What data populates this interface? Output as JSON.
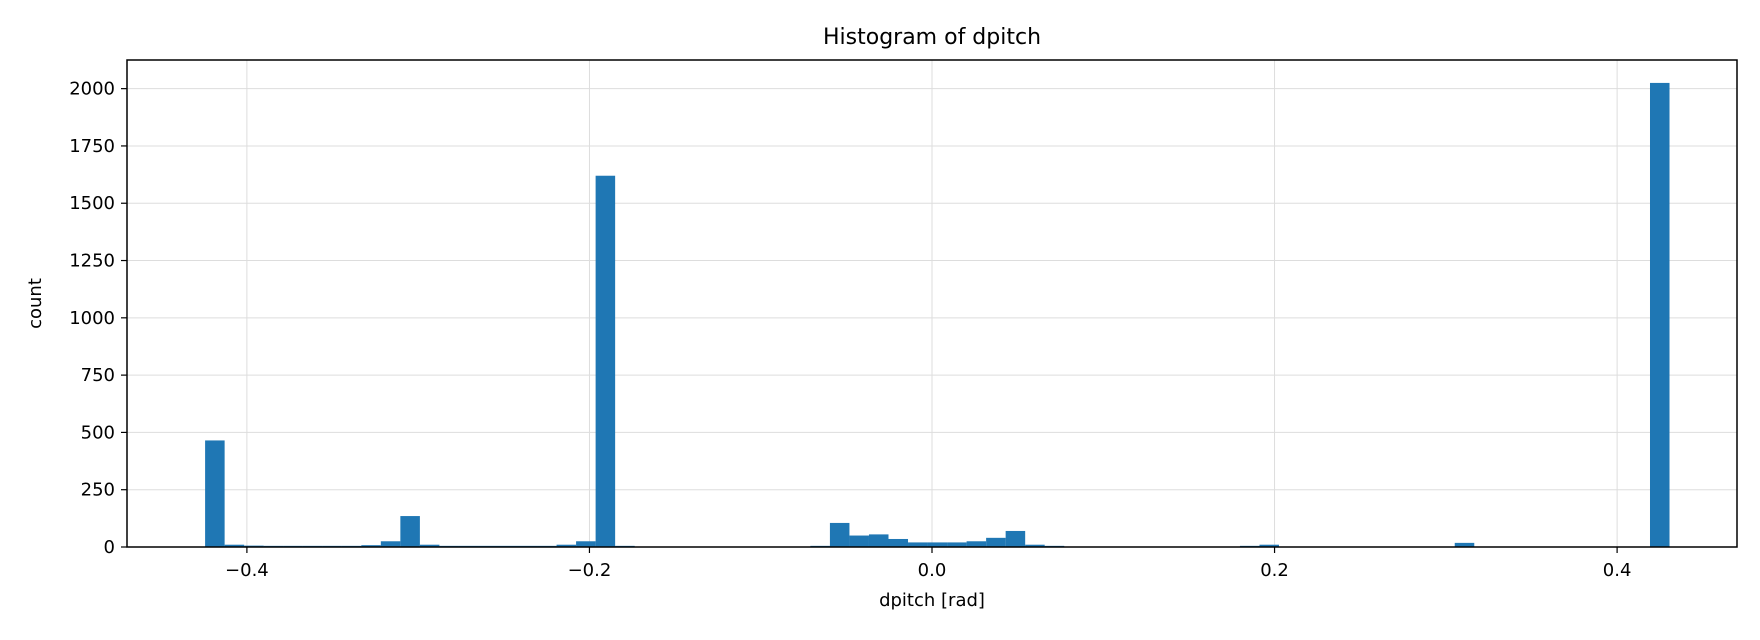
{
  "chart_data": {
    "type": "bar",
    "title": "Histogram of dpitch",
    "xlabel": "dpitch [rad]",
    "ylabel": "count",
    "xlim": [
      -0.47,
      0.47
    ],
    "ylim": [
      0,
      2125
    ],
    "grid": true,
    "bar_color": "#1f77b4",
    "xticks": [
      -0.4,
      -0.2,
      0.0,
      0.2,
      0.4
    ],
    "xtick_labels": [
      "−0.4",
      "−0.2",
      "0.0",
      "0.2",
      "0.4"
    ],
    "yticks": [
      0,
      250,
      500,
      750,
      1000,
      1250,
      1500,
      1750,
      2000
    ],
    "ytick_labels": [
      "0",
      "250",
      "500",
      "750",
      "1000",
      "1250",
      "1500",
      "1750",
      "2000"
    ],
    "bin_width": 0.0114,
    "bins": [
      {
        "x": -0.4244,
        "count": 465
      },
      {
        "x": -0.413,
        "count": 10
      },
      {
        "x": -0.4016,
        "count": 6
      },
      {
        "x": -0.3902,
        "count": 5
      },
      {
        "x": -0.3788,
        "count": 5
      },
      {
        "x": -0.3674,
        "count": 5
      },
      {
        "x": -0.356,
        "count": 5
      },
      {
        "x": -0.3446,
        "count": 5
      },
      {
        "x": -0.3332,
        "count": 8
      },
      {
        "x": -0.3218,
        "count": 25
      },
      {
        "x": -0.3104,
        "count": 135
      },
      {
        "x": -0.299,
        "count": 10
      },
      {
        "x": -0.2876,
        "count": 5
      },
      {
        "x": -0.2762,
        "count": 5
      },
      {
        "x": -0.2648,
        "count": 5
      },
      {
        "x": -0.2534,
        "count": 5
      },
      {
        "x": -0.242,
        "count": 5
      },
      {
        "x": -0.2306,
        "count": 5
      },
      {
        "x": -0.2192,
        "count": 10
      },
      {
        "x": -0.2078,
        "count": 25
      },
      {
        "x": -0.1964,
        "count": 1620
      },
      {
        "x": -0.185,
        "count": 5
      },
      {
        "x": -0.071,
        "count": 5
      },
      {
        "x": -0.0596,
        "count": 105
      },
      {
        "x": -0.0482,
        "count": 50
      },
      {
        "x": -0.0368,
        "count": 55
      },
      {
        "x": -0.0254,
        "count": 35
      },
      {
        "x": -0.014,
        "count": 20
      },
      {
        "x": -0.0026,
        "count": 20
      },
      {
        "x": 0.0088,
        "count": 20
      },
      {
        "x": 0.0202,
        "count": 25
      },
      {
        "x": 0.0316,
        "count": 40
      },
      {
        "x": 0.043,
        "count": 70
      },
      {
        "x": 0.0544,
        "count": 10
      },
      {
        "x": 0.0658,
        "count": 5
      },
      {
        "x": 0.1798,
        "count": 5
      },
      {
        "x": 0.1912,
        "count": 10
      },
      {
        "x": 0.3052,
        "count": 18
      },
      {
        "x": 0.4192,
        "count": 2025
      }
    ]
  }
}
